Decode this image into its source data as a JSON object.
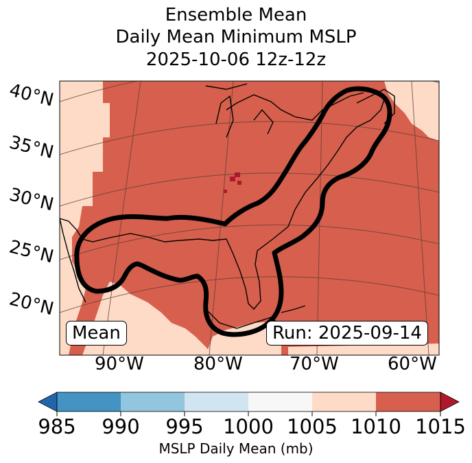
{
  "title": {
    "line1": "Ensemble Mean",
    "line2": "Daily Mean Minimum MSLP",
    "line3": "2025-10-06 12z-12z"
  },
  "map": {
    "latitude_labels": [
      "40°N",
      "35°N",
      "30°N",
      "25°N",
      "20°N"
    ],
    "longitude_labels": [
      "90°W",
      "80°W",
      "70°W",
      "60°W"
    ],
    "mean_box": "Mean",
    "run_box": "Run: 2025-09-14"
  },
  "colorbar": {
    "ticks": [
      "985",
      "990",
      "995",
      "1000",
      "1005",
      "1010",
      "1015"
    ],
    "label": "MSLP Daily Mean (mb)",
    "colors": [
      "#2166ac",
      "#4393c3",
      "#92c5de",
      "#d1e5f0",
      "#f7f7f7",
      "#fddbc7",
      "#d6604d",
      "#b2182b"
    ]
  },
  "colors": {
    "field_main": "#d6604d",
    "field_low": "#fddbc7",
    "field_high": "#b2182b",
    "outline": "#000000"
  }
}
